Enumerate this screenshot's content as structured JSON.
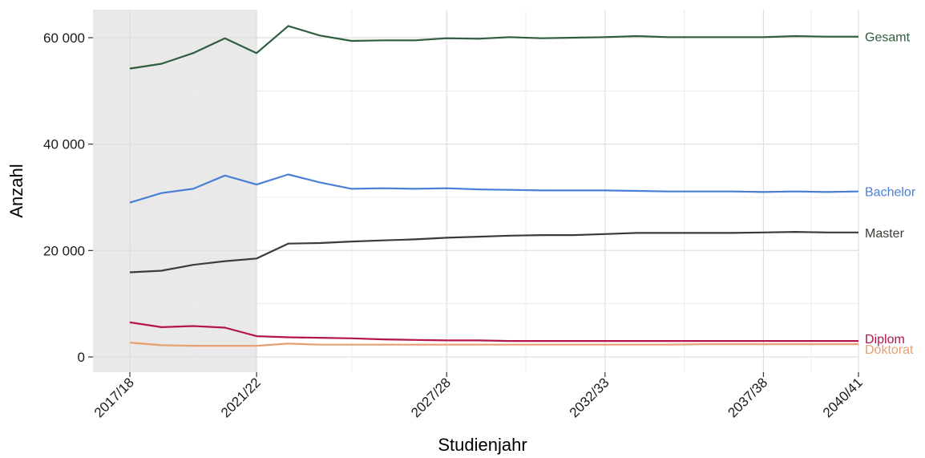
{
  "chart_data": {
    "type": "line",
    "title": "",
    "xlabel": "Studienjahr",
    "ylabel": "Anzahl",
    "x_categories": [
      "2017/18",
      "2018/19",
      "2019/20",
      "2020/21",
      "2021/22",
      "2022/23",
      "2023/24",
      "2024/25",
      "2025/26",
      "2026/27",
      "2027/28",
      "2028/29",
      "2029/30",
      "2030/31",
      "2031/32",
      "2032/33",
      "2033/34",
      "2034/35",
      "2035/36",
      "2036/37",
      "2037/38",
      "2038/39",
      "2039/40",
      "2040/41"
    ],
    "x_tick_labels": [
      "2017/18",
      "2021/22",
      "2027/28",
      "2032/33",
      "2037/38",
      "2040/41"
    ],
    "y_ticks": [
      0,
      20000,
      40000,
      60000
    ],
    "y_tick_labels": [
      "0",
      "20 000",
      "40 000",
      "60 000"
    ],
    "ylim": [
      -3000,
      65000
    ],
    "grid": true,
    "shaded_region": [
      "2017/18",
      "2021/22"
    ],
    "legend": "inline labels at right end of lines",
    "series": [
      {
        "name": "Gesamt",
        "color": "#2e5e3e",
        "values": [
          54200,
          55100,
          57100,
          59900,
          57100,
          62200,
          60400,
          59400,
          59500,
          59500,
          59900,
          59800,
          60100,
          59900,
          60000,
          60100,
          60300,
          60100,
          60100,
          60100,
          60100,
          60300,
          60200,
          60200
        ]
      },
      {
        "name": "Bachelor",
        "color": "#4a7fd4",
        "values": [
          29000,
          30800,
          31600,
          34100,
          32400,
          34300,
          32800,
          31600,
          31700,
          31600,
          31700,
          31500,
          31400,
          31300,
          31300,
          31300,
          31200,
          31100,
          31100,
          31100,
          31000,
          31100,
          31000,
          31100
        ]
      },
      {
        "name": "Master",
        "color": "#3f3a36",
        "values": [
          15900,
          16200,
          17300,
          18000,
          18500,
          21300,
          21400,
          21700,
          21900,
          22100,
          22400,
          22600,
          22800,
          22900,
          22900,
          23100,
          23300,
          23300,
          23300,
          23300,
          23400,
          23500,
          23400,
          23400
        ]
      },
      {
        "name": "Diplom",
        "color": "#b5154b",
        "values": [
          6500,
          5600,
          5800,
          5500,
          3900,
          3700,
          3600,
          3500,
          3300,
          3200,
          3100,
          3100,
          3000,
          3000,
          3000,
          3000,
          3000,
          3000,
          3000,
          3000,
          3000,
          3000,
          3000,
          3000
        ]
      },
      {
        "name": "Doktorat",
        "color": "#e8a070",
        "values": [
          2700,
          2200,
          2100,
          2100,
          2100,
          2500,
          2300,
          2300,
          2300,
          2300,
          2300,
          2300,
          2300,
          2300,
          2300,
          2300,
          2300,
          2300,
          2400,
          2400,
          2400,
          2400,
          2400,
          2400
        ]
      }
    ]
  }
}
